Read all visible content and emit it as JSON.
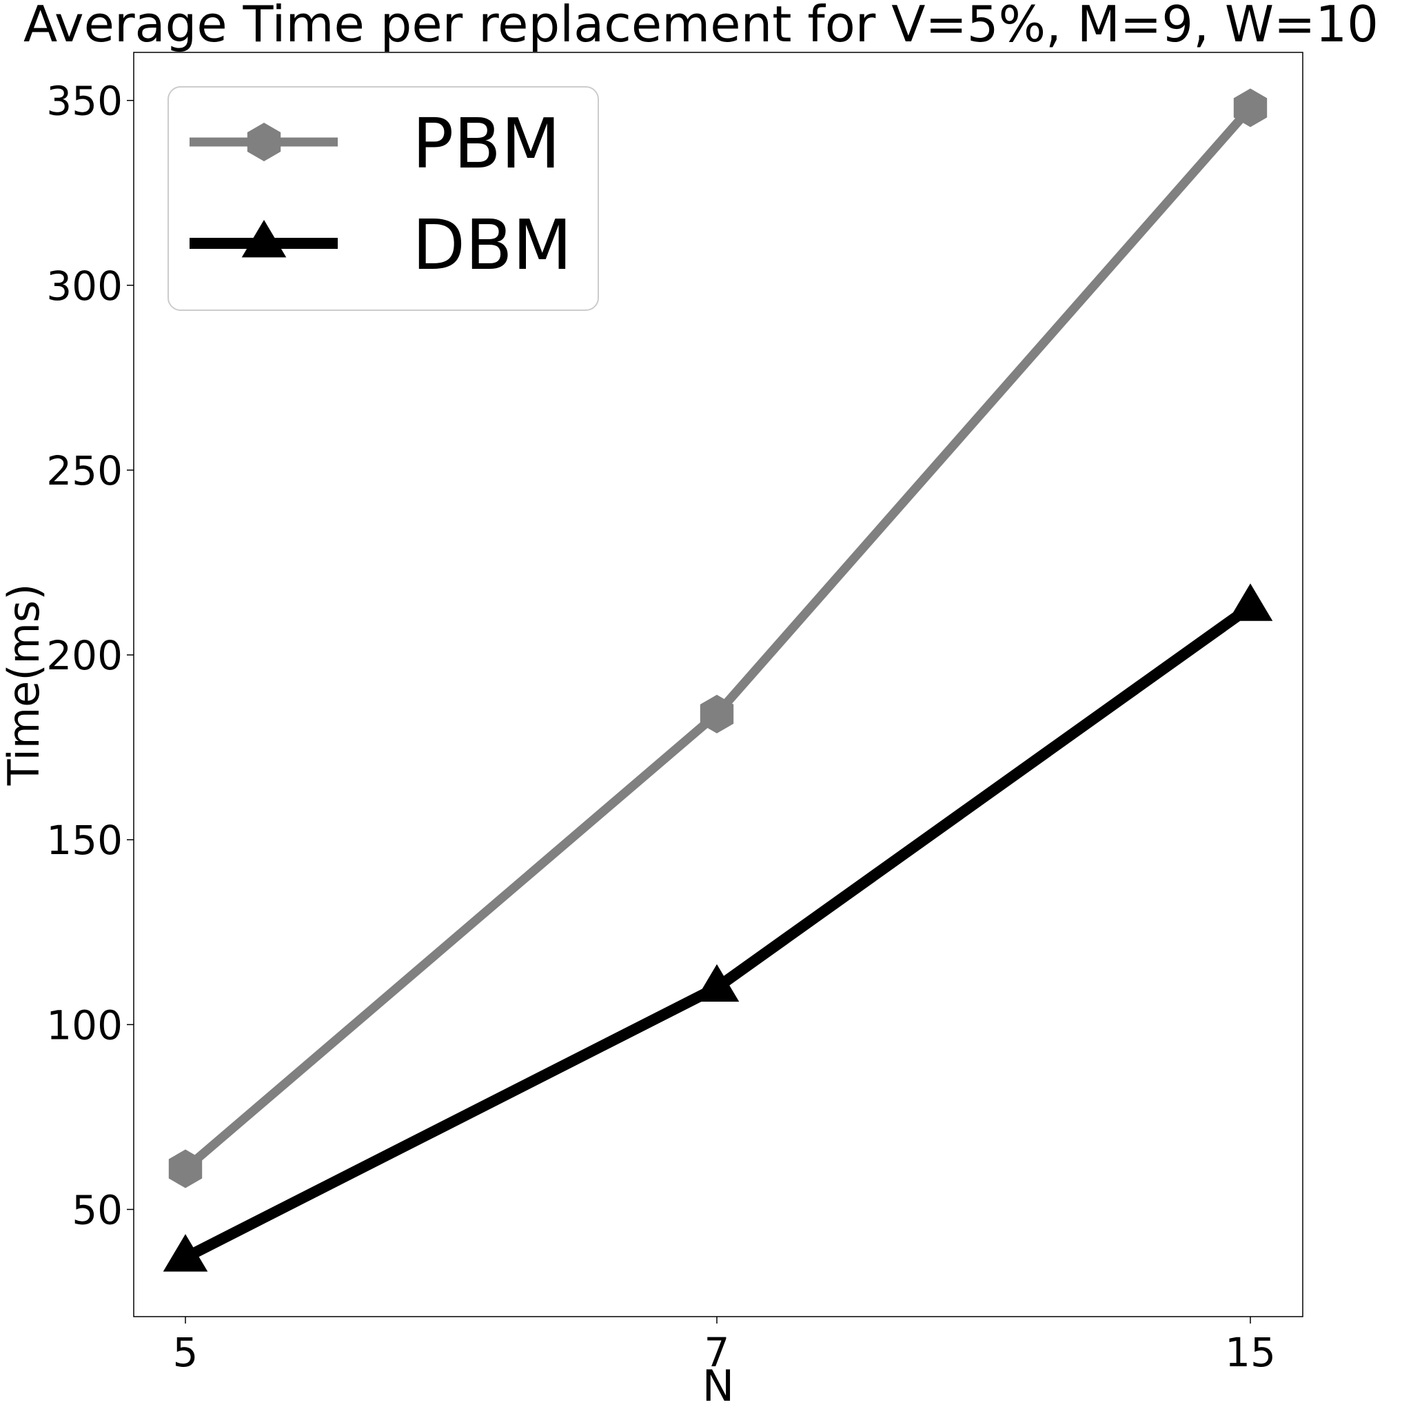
{
  "chart_data": {
    "type": "line",
    "title": "Average Time per replacement for V=5%, M=9, W=10",
    "xlabel": "N",
    "ylabel": "Time(ms)",
    "x_categories": [
      "5",
      "7",
      "15"
    ],
    "yticks": [
      50,
      100,
      150,
      200,
      250,
      300,
      350
    ],
    "ylim": [
      21,
      363
    ],
    "grid": false,
    "legend_position": "top-left",
    "series": [
      {
        "name": "PBM",
        "color": "#808080",
        "marker": "hexagon",
        "values": [
          61,
          184,
          348
        ]
      },
      {
        "name": "DBM",
        "color": "#000000",
        "marker": "triangle",
        "values": [
          37,
          110,
          213
        ]
      }
    ]
  }
}
